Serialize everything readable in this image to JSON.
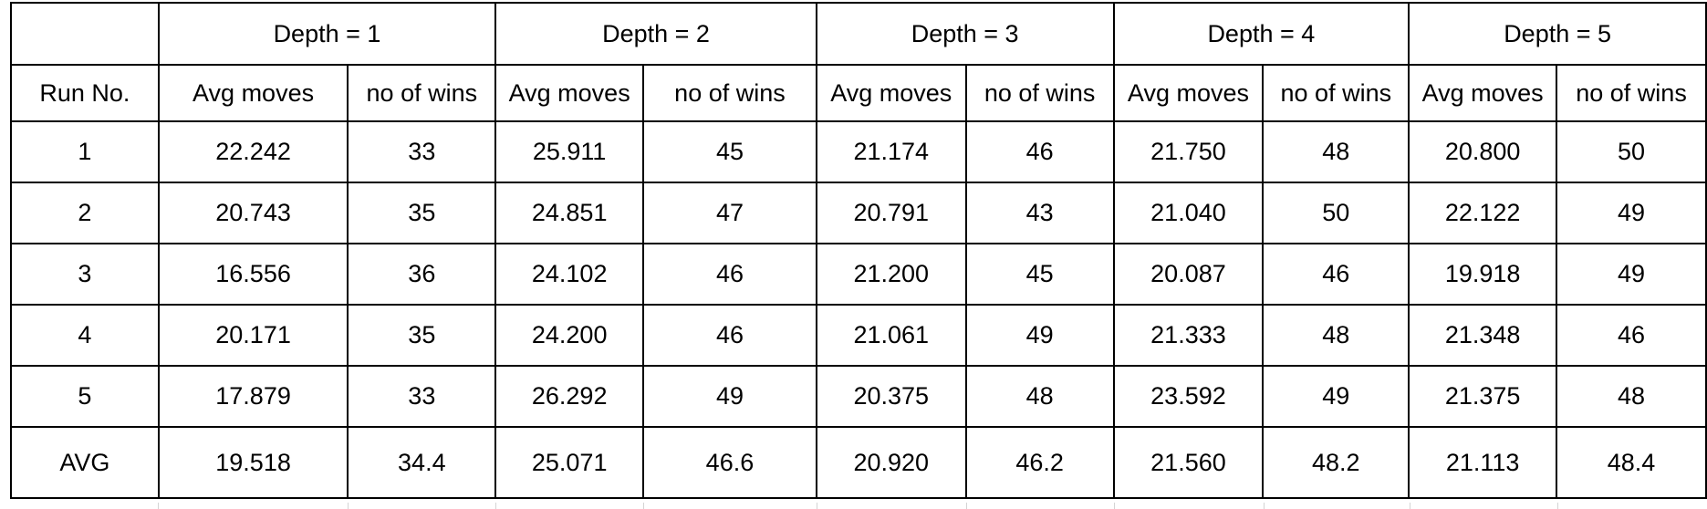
{
  "table": {
    "groups": [
      "Depth = 1",
      "Depth = 2",
      "Depth = 3",
      "Depth = 4",
      "Depth = 5"
    ],
    "subheaders": {
      "run": "Run No.",
      "cols": [
        "Avg moves",
        "no of wins",
        "Avg moves",
        "no of wins",
        "Avg moves",
        "no of wins",
        "Avg moves",
        "no of wins",
        "Avg moves",
        "no of wins"
      ]
    },
    "rows": [
      {
        "label": "1",
        "cells": [
          "22.242",
          "33",
          "25.911",
          "45",
          "21.174",
          "46",
          "21.750",
          "48",
          "20.800",
          "50"
        ]
      },
      {
        "label": "2",
        "cells": [
          "20.743",
          "35",
          "24.851",
          "47",
          "20.791",
          "43",
          "21.040",
          "50",
          "22.122",
          "49"
        ]
      },
      {
        "label": "3",
        "cells": [
          "16.556",
          "36",
          "24.102",
          "46",
          "21.200",
          "45",
          "20.087",
          "46",
          "19.918",
          "49"
        ]
      },
      {
        "label": "4",
        "cells": [
          "20.171",
          "35",
          "24.200",
          "46",
          "21.061",
          "49",
          "21.333",
          "48",
          "21.348",
          "46"
        ]
      },
      {
        "label": "5",
        "cells": [
          "17.879",
          "33",
          "26.292",
          "49",
          "20.375",
          "48",
          "23.592",
          "49",
          "21.375",
          "48"
        ]
      },
      {
        "label": "AVG",
        "cells": [
          "19.518",
          "34.4",
          "25.071",
          "46.6",
          "20.920",
          "46.2",
          "21.560",
          "48.2",
          "21.113",
          "48.4"
        ]
      }
    ]
  }
}
